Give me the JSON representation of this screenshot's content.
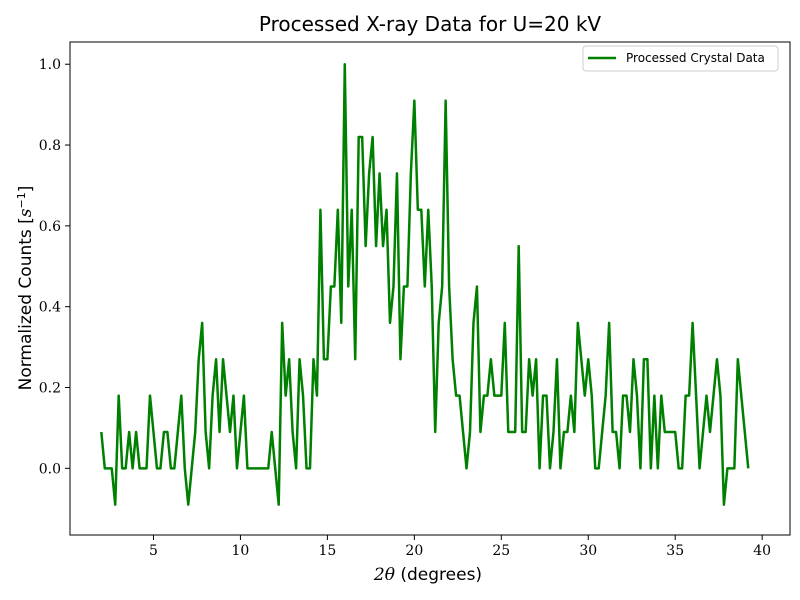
{
  "chart_data": {
    "type": "line",
    "title": "Processed X-ray Data for U=20 kV",
    "xlabel_symbol": "2θ",
    "xlabel_text": " (degrees)",
    "ylabel_prefix": "Normalized Counts [",
    "ylabel_symbol": "s",
    "ylabel_exp": "−1",
    "ylabel_suffix": "]",
    "xlim": [
      0.2,
      41.6
    ],
    "ylim": [
      -0.165,
      1.055
    ],
    "xticks": [
      5,
      10,
      15,
      20,
      25,
      30,
      35,
      40
    ],
    "xtick_labels": [
      "5",
      "10",
      "15",
      "20",
      "25",
      "30",
      "35",
      "40"
    ],
    "yticks": [
      0.0,
      0.2,
      0.4,
      0.6,
      0.8,
      1.0
    ],
    "ytick_labels": [
      "0.0",
      "0.2",
      "0.4",
      "0.6",
      "0.8",
      "1.0"
    ],
    "legend_position": "top-right",
    "grid": false,
    "series": [
      {
        "name": "Processed Crystal Data",
        "color": "#008000",
        "points": [
          [
            2.0,
            0.09
          ],
          [
            2.2,
            0.0
          ],
          [
            2.4,
            0.0
          ],
          [
            2.6,
            0.0
          ],
          [
            2.8,
            -0.09
          ],
          [
            3.0,
            0.18
          ],
          [
            3.2,
            0.0
          ],
          [
            3.4,
            0.0
          ],
          [
            3.6,
            0.09
          ],
          [
            3.8,
            0.0
          ],
          [
            4.0,
            0.09
          ],
          [
            4.2,
            0.0
          ],
          [
            4.4,
            0.0
          ],
          [
            4.6,
            0.0
          ],
          [
            4.8,
            0.18
          ],
          [
            5.0,
            0.09
          ],
          [
            5.2,
            0.0
          ],
          [
            5.4,
            0.0
          ],
          [
            5.6,
            0.09
          ],
          [
            5.8,
            0.09
          ],
          [
            6.0,
            0.0
          ],
          [
            6.2,
            0.0
          ],
          [
            6.4,
            0.09
          ],
          [
            6.6,
            0.18
          ],
          [
            6.8,
            0.0
          ],
          [
            7.0,
            -0.09
          ],
          [
            7.2,
            0.0
          ],
          [
            7.4,
            0.09
          ],
          [
            7.6,
            0.27
          ],
          [
            7.8,
            0.36
          ],
          [
            8.0,
            0.09
          ],
          [
            8.2,
            0.0
          ],
          [
            8.4,
            0.18
          ],
          [
            8.6,
            0.27
          ],
          [
            8.8,
            0.09
          ],
          [
            9.0,
            0.27
          ],
          [
            9.2,
            0.18
          ],
          [
            9.4,
            0.09
          ],
          [
            9.6,
            0.18
          ],
          [
            9.8,
            0.0
          ],
          [
            10.0,
            0.09
          ],
          [
            10.2,
            0.18
          ],
          [
            10.4,
            0.0
          ],
          [
            10.6,
            0.0
          ],
          [
            10.8,
            0.0
          ],
          [
            11.0,
            0.0
          ],
          [
            11.2,
            0.0
          ],
          [
            11.4,
            0.0
          ],
          [
            11.6,
            0.0
          ],
          [
            11.8,
            0.09
          ],
          [
            12.0,
            0.0
          ],
          [
            12.2,
            -0.09
          ],
          [
            12.4,
            0.36
          ],
          [
            12.6,
            0.18
          ],
          [
            12.8,
            0.27
          ],
          [
            13.0,
            0.09
          ],
          [
            13.2,
            0.0
          ],
          [
            13.4,
            0.27
          ],
          [
            13.6,
            0.18
          ],
          [
            13.8,
            0.0
          ],
          [
            14.0,
            0.0
          ],
          [
            14.2,
            0.27
          ],
          [
            14.4,
            0.18
          ],
          [
            14.6,
            0.64
          ],
          [
            14.8,
            0.27
          ],
          [
            15.0,
            0.27
          ],
          [
            15.2,
            0.45
          ],
          [
            15.4,
            0.45
          ],
          [
            15.6,
            0.64
          ],
          [
            15.8,
            0.36
          ],
          [
            16.0,
            1.0
          ],
          [
            16.2,
            0.45
          ],
          [
            16.4,
            0.64
          ],
          [
            16.6,
            0.27
          ],
          [
            16.8,
            0.82
          ],
          [
            17.0,
            0.82
          ],
          [
            17.2,
            0.55
          ],
          [
            17.4,
            0.73
          ],
          [
            17.6,
            0.82
          ],
          [
            17.8,
            0.55
          ],
          [
            18.0,
            0.73
          ],
          [
            18.2,
            0.55
          ],
          [
            18.4,
            0.64
          ],
          [
            18.6,
            0.36
          ],
          [
            18.8,
            0.45
          ],
          [
            19.0,
            0.73
          ],
          [
            19.2,
            0.27
          ],
          [
            19.4,
            0.45
          ],
          [
            19.6,
            0.45
          ],
          [
            19.8,
            0.73
          ],
          [
            20.0,
            0.91
          ],
          [
            20.2,
            0.64
          ],
          [
            20.4,
            0.64
          ],
          [
            20.6,
            0.45
          ],
          [
            20.8,
            0.64
          ],
          [
            21.0,
            0.45
          ],
          [
            21.2,
            0.09
          ],
          [
            21.4,
            0.36
          ],
          [
            21.6,
            0.45
          ],
          [
            21.8,
            0.91
          ],
          [
            22.0,
            0.45
          ],
          [
            22.2,
            0.27
          ],
          [
            22.4,
            0.18
          ],
          [
            22.6,
            0.18
          ],
          [
            22.8,
            0.09
          ],
          [
            23.0,
            0.0
          ],
          [
            23.2,
            0.09
          ],
          [
            23.4,
            0.36
          ],
          [
            23.6,
            0.45
          ],
          [
            23.8,
            0.09
          ],
          [
            24.0,
            0.18
          ],
          [
            24.2,
            0.18
          ],
          [
            24.4,
            0.27
          ],
          [
            24.6,
            0.18
          ],
          [
            24.8,
            0.18
          ],
          [
            25.0,
            0.18
          ],
          [
            25.2,
            0.36
          ],
          [
            25.4,
            0.09
          ],
          [
            25.6,
            0.09
          ],
          [
            25.8,
            0.09
          ],
          [
            26.0,
            0.55
          ],
          [
            26.2,
            0.09
          ],
          [
            26.4,
            0.09
          ],
          [
            26.6,
            0.27
          ],
          [
            26.8,
            0.18
          ],
          [
            27.0,
            0.27
          ],
          [
            27.2,
            0.0
          ],
          [
            27.4,
            0.18
          ],
          [
            27.6,
            0.18
          ],
          [
            27.8,
            0.0
          ],
          [
            28.0,
            0.09
          ],
          [
            28.2,
            0.27
          ],
          [
            28.4,
            0.0
          ],
          [
            28.6,
            0.09
          ],
          [
            28.8,
            0.09
          ],
          [
            29.0,
            0.18
          ],
          [
            29.2,
            0.09
          ],
          [
            29.4,
            0.36
          ],
          [
            29.6,
            0.27
          ],
          [
            29.8,
            0.18
          ],
          [
            30.0,
            0.27
          ],
          [
            30.2,
            0.18
          ],
          [
            30.4,
            0.0
          ],
          [
            30.6,
            0.0
          ],
          [
            30.8,
            0.09
          ],
          [
            31.0,
            0.18
          ],
          [
            31.2,
            0.36
          ],
          [
            31.4,
            0.09
          ],
          [
            31.6,
            0.09
          ],
          [
            31.8,
            0.0
          ],
          [
            32.0,
            0.18
          ],
          [
            32.2,
            0.18
          ],
          [
            32.4,
            0.09
          ],
          [
            32.6,
            0.27
          ],
          [
            32.8,
            0.18
          ],
          [
            33.0,
            0.0
          ],
          [
            33.2,
            0.27
          ],
          [
            33.4,
            0.27
          ],
          [
            33.6,
            0.0
          ],
          [
            33.8,
            0.18
          ],
          [
            34.0,
            0.0
          ],
          [
            34.2,
            0.18
          ],
          [
            34.4,
            0.09
          ],
          [
            34.6,
            0.09
          ],
          [
            34.8,
            0.09
          ],
          [
            35.0,
            0.09
          ],
          [
            35.2,
            0.0
          ],
          [
            35.4,
            0.0
          ],
          [
            35.6,
            0.18
          ],
          [
            35.8,
            0.18
          ],
          [
            36.0,
            0.36
          ],
          [
            36.2,
            0.18
          ],
          [
            36.4,
            0.0
          ],
          [
            36.6,
            0.09
          ],
          [
            36.8,
            0.18
          ],
          [
            37.0,
            0.09
          ],
          [
            37.2,
            0.18
          ],
          [
            37.4,
            0.27
          ],
          [
            37.6,
            0.18
          ],
          [
            37.8,
            -0.09
          ],
          [
            38.0,
            0.0
          ],
          [
            38.2,
            0.0
          ],
          [
            38.4,
            0.0
          ],
          [
            38.6,
            0.27
          ],
          [
            38.8,
            0.18
          ],
          [
            39.0,
            0.09
          ],
          [
            39.2,
            0.0
          ]
        ]
      }
    ]
  }
}
